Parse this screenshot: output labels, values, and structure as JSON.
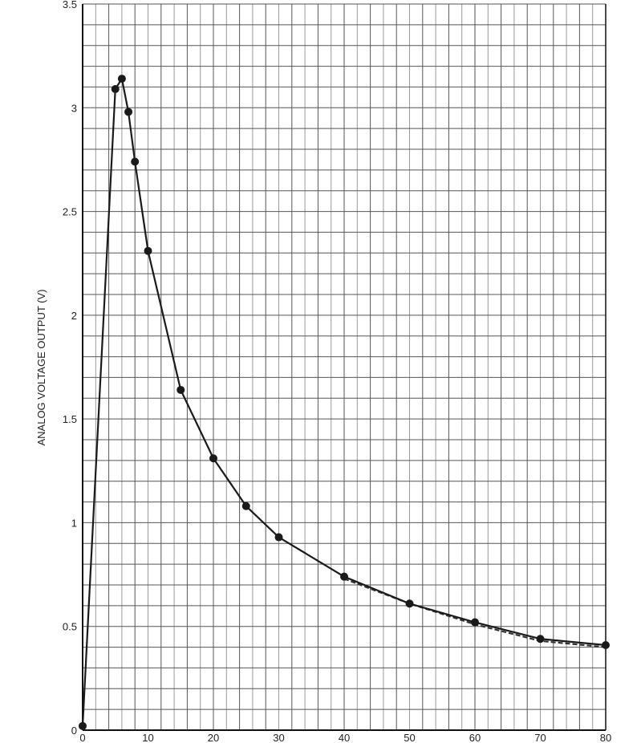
{
  "chart_data": {
    "type": "line",
    "title": "",
    "xlabel": "",
    "ylabel": "ANALOG VOLTAGE OUTPUT (V)",
    "xlim": [
      0,
      80
    ],
    "ylim": [
      0,
      3.5
    ],
    "x_ticks": [
      "0",
      "10",
      "20",
      "30",
      "40",
      "50",
      "60",
      "70",
      "80"
    ],
    "y_ticks": [
      "0",
      "0.5",
      "1",
      "1.5",
      "2",
      "2.5",
      "3",
      "3.5"
    ],
    "grid": true,
    "grid_minor_x_step": 2,
    "grid_minor_y_step": 0.1,
    "series": [
      {
        "style": "solid-with-markers",
        "color": "#1a1a1a",
        "x": [
          0,
          5,
          6,
          7,
          8,
          10,
          15,
          20,
          25,
          30,
          40,
          50,
          60,
          70,
          80
        ],
        "y": [
          0.02,
          3.09,
          3.14,
          2.98,
          2.74,
          2.31,
          1.64,
          1.31,
          1.08,
          0.93,
          0.74,
          0.61,
          0.52,
          0.44,
          0.41
        ]
      },
      {
        "style": "dashed",
        "color": "#333333",
        "x": [
          40,
          50,
          60,
          70,
          80
        ],
        "y": [
          0.73,
          0.61,
          0.51,
          0.43,
          0.4
        ]
      }
    ]
  }
}
